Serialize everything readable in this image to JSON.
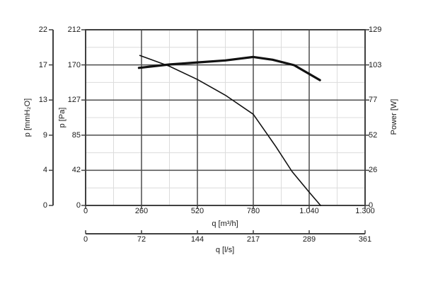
{
  "chart_data": {
    "type": "line",
    "grid": "major and minor gridlines on",
    "legend": "none",
    "background": "#ffffff",
    "x_axis_m3h": {
      "label": "q [m³/h]",
      "tick_labels": [
        "0",
        "260",
        "520",
        "780",
        "1.040",
        "1.300"
      ],
      "tick_values": [
        0,
        260,
        520,
        780,
        1040,
        1300
      ],
      "range": [
        0,
        1300
      ]
    },
    "x_axis_ls": {
      "label": "q [l/s]",
      "tick_labels": [
        "0",
        "72",
        "144",
        "217",
        "289",
        "361"
      ],
      "tick_values": [
        0,
        72,
        144,
        217,
        289,
        361
      ],
      "range": [
        0,
        361
      ]
    },
    "y_axis_mmh2o": {
      "label": "p [mmH₂O]",
      "tick_labels": [
        "22",
        "17",
        "13",
        "9",
        "4",
        "0"
      ],
      "range": [
        0,
        22
      ]
    },
    "y_axis_pa": {
      "label": "p [Pa]",
      "tick_labels": [
        "212",
        "170",
        "127",
        "85",
        "42",
        "0"
      ],
      "tick_values": [
        212,
        170,
        127,
        85,
        42,
        0
      ],
      "range": [
        0,
        212
      ]
    },
    "y_axis_power": {
      "label": "Power [W]",
      "tick_labels": [
        "129",
        "103",
        "77",
        "52",
        "26",
        "0"
      ],
      "tick_values": [
        129,
        103,
        77,
        52,
        26,
        0
      ],
      "range": [
        0,
        129
      ]
    },
    "series": [
      {
        "name": "pressure-curve",
        "axis": "pa",
        "units": "q in m³/h, p in Pa",
        "stroke_width": 1.6,
        "points": [
          [
            252,
            181
          ],
          [
            390,
            168
          ],
          [
            520,
            152
          ],
          [
            650,
            133
          ],
          [
            780,
            110
          ],
          [
            885,
            71
          ],
          [
            960,
            41
          ],
          [
            1040,
            16
          ],
          [
            1093,
            0
          ]
        ]
      },
      {
        "name": "power-curve",
        "axis": "power",
        "units": "q in m³/h, P in W",
        "stroke_width": 3.2,
        "points": [
          [
            248,
            101
          ],
          [
            390,
            103.5
          ],
          [
            520,
            105
          ],
          [
            650,
            106.5
          ],
          [
            780,
            109
          ],
          [
            870,
            107
          ],
          [
            970,
            103
          ],
          [
            1090,
            92
          ]
        ]
      }
    ],
    "colors": {
      "curve": "#111111",
      "border": "#404040",
      "major_grid": "#4d4d4d",
      "minor_grid": "#dcdcdc",
      "text": "#1a1a1a",
      "background": "#ffffff"
    }
  }
}
